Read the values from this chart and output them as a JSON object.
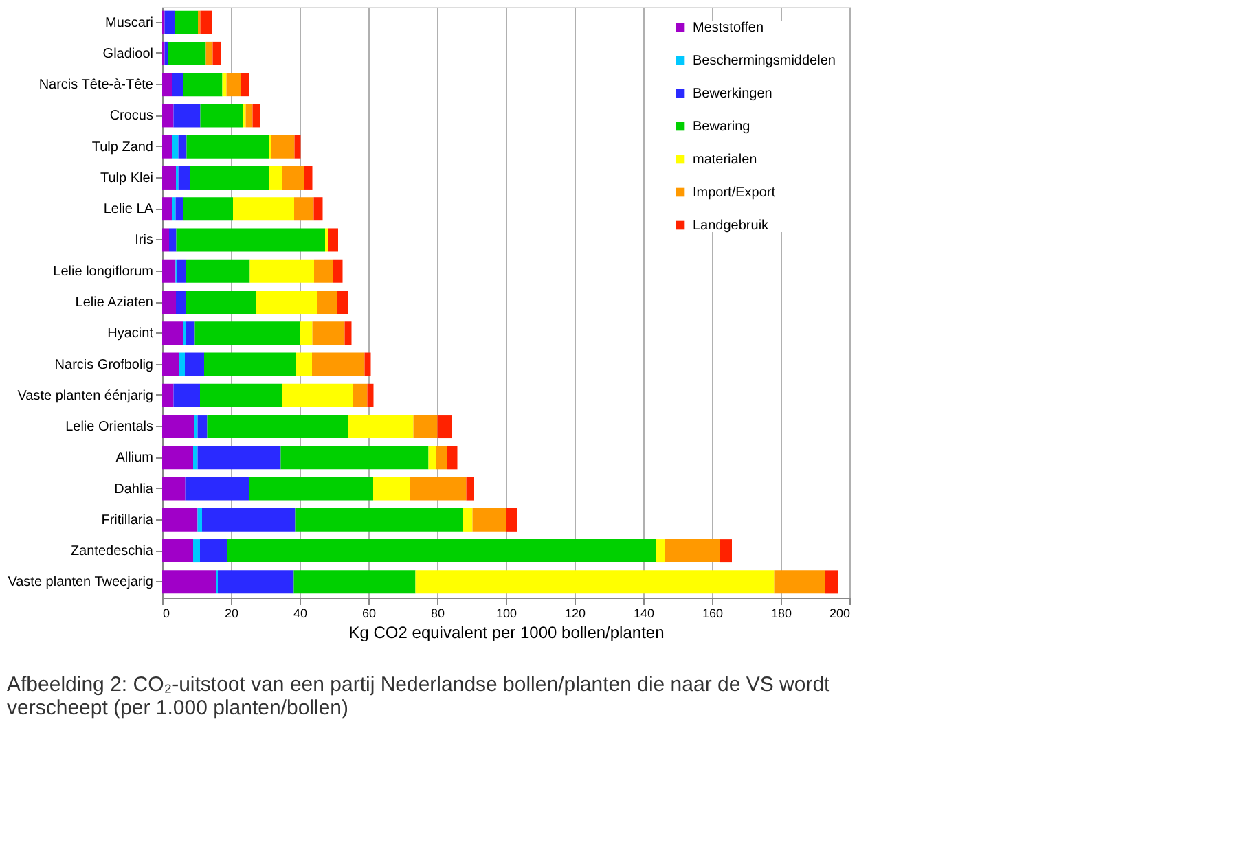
{
  "chart_data": {
    "type": "bar",
    "orientation": "horizontal",
    "stacked": true,
    "categories": [
      "Muscari",
      "Gladiool",
      "Narcis Tête-à-Tête",
      "Crocus",
      "Tulp Zand",
      "Tulp Klei",
      "Lelie LA",
      "Iris",
      "Lelie longiflorum",
      "Lelie Aziaten",
      "Hyacint",
      "Narcis Grofbolig",
      "Vaste planten éénjarig",
      "Lelie Orientals",
      "Allium",
      "Dahlia",
      "Fritillaria",
      "Zantedeschia",
      "Vaste planten Tweejarig"
    ],
    "series": [
      {
        "name": "Meststoffen",
        "color": "#a000c8",
        "values": [
          0.7,
          0.7,
          3,
          3.3,
          2.8,
          4,
          2.9,
          2,
          3.9,
          4,
          6,
          5,
          3.3,
          9.4,
          9,
          6.7,
          10.3,
          9,
          15.8
        ]
      },
      {
        "name": "Beschermingsmiddelen",
        "color": "#00c8ff",
        "values": [
          0,
          0,
          0,
          0,
          1.9,
          0.7,
          1,
          0,
          0.5,
          0,
          1,
          1.6,
          0,
          0.9,
          1.3,
          0,
          1.3,
          2,
          0.4
        ]
      },
      {
        "name": "Bewerkingen",
        "color": "#2a2aff",
        "values": [
          2.9,
          1,
          3.2,
          7.8,
          2.4,
          3.3,
          2.1,
          2.1,
          2.5,
          3,
          2.5,
          5.6,
          7.7,
          2.8,
          24.2,
          18.7,
          27.1,
          8,
          22.1
        ]
      },
      {
        "name": "Bewaring",
        "color": "#00d000",
        "values": [
          6.8,
          11,
          11.3,
          12.3,
          23.9,
          23,
          14.6,
          43.3,
          18.6,
          20.3,
          30.7,
          26.6,
          24,
          41,
          43,
          36,
          48.7,
          124.6,
          35.4
        ]
      },
      {
        "name": "materialen",
        "color": "#ffff00",
        "values": [
          0,
          0,
          1.2,
          0.9,
          0.8,
          3.9,
          17.8,
          1,
          18.7,
          17.8,
          3.5,
          4.8,
          20.4,
          19,
          2.1,
          10.7,
          2.9,
          2.8,
          104.4
        ]
      },
      {
        "name": "Import/Export",
        "color": "#ff9900",
        "values": [
          0.7,
          2,
          4.3,
          2,
          6.7,
          6.5,
          5.7,
          0,
          5.5,
          5.7,
          9.4,
          15.3,
          4.3,
          7,
          3.2,
          16.4,
          9.8,
          16,
          14.7
        ]
      },
      {
        "name": "Landgebruik",
        "color": "#ff2200",
        "values": [
          3.5,
          2.3,
          2.3,
          2.2,
          1.8,
          2.3,
          2.6,
          2.8,
          2.8,
          3.2,
          2,
          1.8,
          1.8,
          4.3,
          3.1,
          2.3,
          3.3,
          3.4,
          3.8
        ]
      }
    ],
    "xlim": [
      0,
      200
    ],
    "xticks": [
      0,
      20,
      40,
      60,
      80,
      100,
      120,
      140,
      160,
      180,
      200
    ],
    "xlabel": "Kg CO2 equivalent per 1000 bollen/planten",
    "grid": "x",
    "legend": "top right",
    "annotations": [
      "Afbeelding 2: CO₂-uitstoot van een partij Nederlandse bollen/planten die naar de VS wordt verscheept (per 1.000 planten/bollen)"
    ]
  }
}
